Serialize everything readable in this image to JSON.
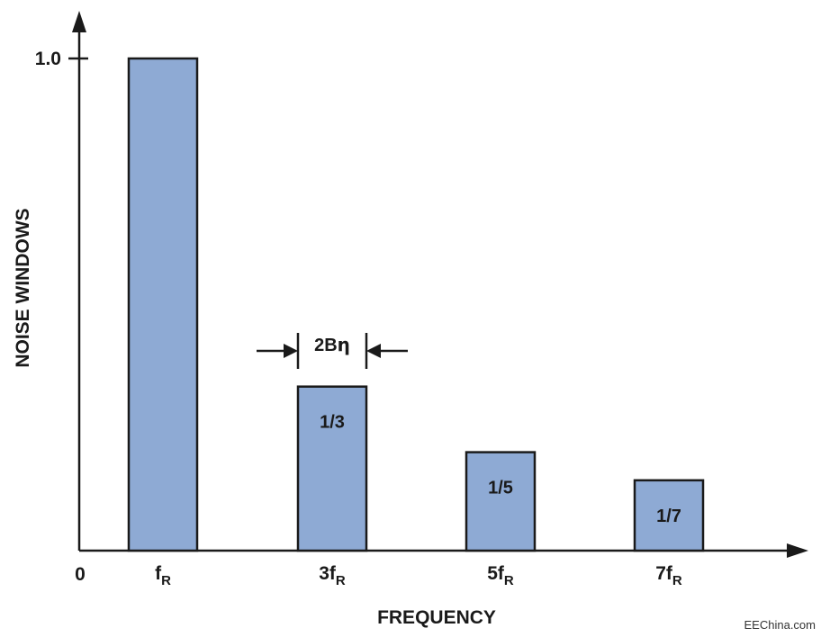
{
  "chart_data": {
    "type": "bar",
    "categories": [
      {
        "main": "f",
        "sub": "R"
      },
      {
        "main": "3f",
        "sub": "R"
      },
      {
        "main": "5f",
        "sub": "R"
      },
      {
        "main": "7f",
        "sub": "R"
      }
    ],
    "values": [
      1.0,
      0.3333,
      0.2,
      0.1429
    ],
    "bar_labels": [
      "",
      "1/3",
      "1/5",
      "1/7"
    ],
    "origin_label": "0",
    "y_tick_label": "1.0",
    "ylim": [
      0,
      1.0
    ],
    "xlabel": "FREQUENCY",
    "ylabel": "NOISE WINDOWS",
    "bandwidth_annotation": {
      "label": "2B",
      "symbol": "η",
      "bar_index": 1
    },
    "bar_color": "#8eaad4",
    "bar_stroke": "#1a1a1a",
    "grid": false,
    "legend": "none"
  },
  "watermark": "EEChina.com"
}
